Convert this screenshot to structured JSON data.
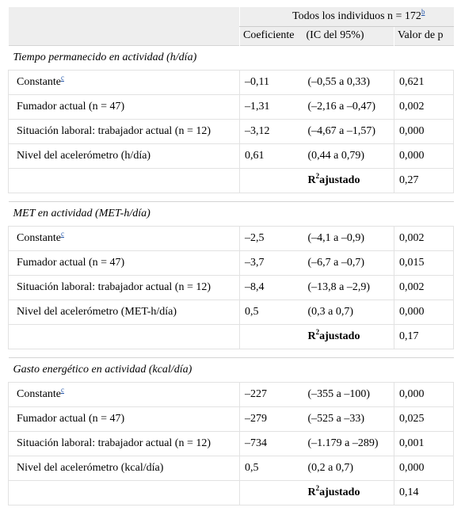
{
  "header": {
    "group_label": "Todos los individuos n = 172",
    "group_note": "b",
    "col_coef": "Coeficiente",
    "col_ic": "(IC del 95%)",
    "col_p": "Valor de p"
  },
  "sections": [
    {
      "title": "Tiempo permanecido en actividad (h/día)",
      "rows": [
        {
          "label": "Constante",
          "note": "c",
          "coef": "–0,11",
          "ic": "(–0,55 a 0,33)",
          "p": "0,621"
        },
        {
          "label": "Fumador actual (n = 47)",
          "coef": "–1,31",
          "ic": "(–2,16 a –0,47)",
          "p": "0,002"
        },
        {
          "label": "Situación laboral: trabajador actual (n = 12)",
          "coef": "–3,12",
          "ic": "(–4,67 a –1,57)",
          "p": "0,000"
        },
        {
          "label": "Nivel del acelerómetro (h/día)",
          "coef": "0,61",
          "ic": "(0,44 a 0,79)",
          "p": "0,000"
        }
      ],
      "r2_label": "R",
      "r2_sup": "2",
      "r2_sub": "ajustado",
      "r2_value": "0,27"
    },
    {
      "title": "MET en actividad (MET-h/día)",
      "rows": [
        {
          "label": "Constante",
          "note": "c",
          "coef": "–2,5",
          "ic": "(–4,1 a –0,9)",
          "p": "0,002"
        },
        {
          "label": "Fumador actual (n = 47)",
          "coef": "–3,7",
          "ic": "(–6,7 a –0,7)",
          "p": "0,015"
        },
        {
          "label": "Situación laboral: trabajador actual (n = 12)",
          "coef": "–8,4",
          "ic": "(–13,8 a –2,9)",
          "p": "0,002"
        },
        {
          "label": "Nivel del acelerómetro (MET-h/día)",
          "coef": "0,5",
          "ic": "(0,3 a 0,7)",
          "p": "0,000"
        }
      ],
      "r2_label": "R",
      "r2_sup": "2",
      "r2_sub": "ajustado",
      "r2_value": "0,17"
    },
    {
      "title": "Gasto energético en actividad (kcal/día)",
      "rows": [
        {
          "label": "Constante",
          "note": "c",
          "coef": "–227",
          "ic": "(–355 a –100)",
          "p": "0,000"
        },
        {
          "label": "Fumador actual (n = 47)",
          "coef": "–279",
          "ic": "(–525 a –33)",
          "p": "0,025"
        },
        {
          "label": "Situación laboral: trabajador actual (n = 12)",
          "coef": "–734",
          "ic": "(–1.179 a –289)",
          "p": "0,001"
        },
        {
          "label": "Nivel del acelerómetro (kcal/día)",
          "coef": "0,5",
          "ic": "(0,2 a 0,7)",
          "p": "0,000"
        }
      ],
      "r2_label": "R",
      "r2_sup": "2",
      "r2_sub": "ajustado",
      "r2_value": "0,14"
    }
  ]
}
